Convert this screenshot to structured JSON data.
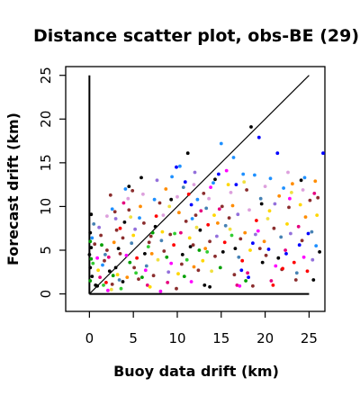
{
  "chart_data": {
    "type": "scatter",
    "title": "Distance scatter plot, obs-BE (29)",
    "xlabel": "Buoy data drift (km)",
    "ylabel": "Forecast drift (km)",
    "xlim": [
      -2.7,
      26.8
    ],
    "ylim": [
      -2.0,
      26.0
    ],
    "xticks": [
      0,
      5,
      10,
      15,
      20,
      25
    ],
    "yticks": [
      0,
      5,
      10,
      15,
      20,
      25
    ],
    "reference_lines": [
      "y = x diagonal from 0 to 25",
      "horizontal axis line y = 0 from x = 0 to 25",
      "vertical axis line x = 0 from y = 0 to 25"
    ],
    "grid": false,
    "legend": "none",
    "point_colors": [
      "#000000",
      "#8b2e2e",
      "#e6007e",
      "#ff00ff",
      "#ff0000",
      "#ff8c00",
      "#ffd700",
      "#f0e040",
      "#00a000",
      "#32cd32",
      "#1e90ff",
      "#4682b4",
      "#0000ff",
      "#9370db",
      "#dda0dd"
    ],
    "series": [
      {
        "color": "#000000",
        "points": [
          [
            0.2,
            9.1
          ],
          [
            0.1,
            7.0
          ],
          [
            0.2,
            5.3
          ],
          [
            0.0,
            4.5
          ],
          [
            0.1,
            3.0
          ],
          [
            0.3,
            2.0
          ],
          [
            0.9,
            0.9
          ],
          [
            2.3,
            2.6
          ],
          [
            3.3,
            5.2
          ],
          [
            3.8,
            1.4
          ],
          [
            4.0,
            8.2
          ],
          [
            4.5,
            12.3
          ],
          [
            5.9,
            13.3
          ],
          [
            6.3,
            4.6
          ],
          [
            7.5,
            7.7
          ],
          [
            9.3,
            10.8
          ],
          [
            11.5,
            5.4
          ],
          [
            11.2,
            16.1
          ],
          [
            12.6,
            7.3
          ],
          [
            13.1,
            1.0
          ],
          [
            13.7,
            0.8
          ],
          [
            14.3,
            13.1
          ],
          [
            15.2,
            4.8
          ],
          [
            16.6,
            5.2
          ],
          [
            18.4,
            19.1
          ],
          [
            19.6,
            10.3
          ],
          [
            19.7,
            3.6
          ],
          [
            21.5,
            4.1
          ],
          [
            24.1,
            13.0
          ],
          [
            25.5,
            1.6
          ],
          [
            26.2,
            4.8
          ],
          [
            0.7,
            1.0
          ],
          [
            3.0,
            3.0
          ],
          [
            10.6,
            4.5
          ]
        ]
      },
      {
        "color": "#8b2e2e",
        "points": [
          [
            0.6,
            5.7
          ],
          [
            1.3,
            6.7
          ],
          [
            1.7,
            3.8
          ],
          [
            2.0,
            5.0
          ],
          [
            2.4,
            11.3
          ],
          [
            2.6,
            1.1
          ],
          [
            3.1,
            7.3
          ],
          [
            3.5,
            4.6
          ],
          [
            3.8,
            6.4
          ],
          [
            4.5,
            9.6
          ],
          [
            5.1,
            3.0
          ],
          [
            5.6,
            1.7
          ],
          [
            6.2,
            8.1
          ],
          [
            6.8,
            5.9
          ],
          [
            7.3,
            2.1
          ],
          [
            8.0,
            10.4
          ],
          [
            8.5,
            4.9
          ],
          [
            9.2,
            6.8
          ],
          [
            9.9,
            0.6
          ],
          [
            10.5,
            3.4
          ],
          [
            11.0,
            8.3
          ],
          [
            11.8,
            5.6
          ],
          [
            12.4,
            2.7
          ],
          [
            13.0,
            11.5
          ],
          [
            13.7,
            6.0
          ],
          [
            14.3,
            4.3
          ],
          [
            15.1,
            10.0
          ],
          [
            15.9,
            8.7
          ],
          [
            16.5,
            2.2
          ],
          [
            17.2,
            6.3
          ],
          [
            17.9,
            11.9
          ],
          [
            18.6,
            0.9
          ],
          [
            19.4,
            5.2
          ],
          [
            20.1,
            4.4
          ],
          [
            21.0,
            7.5
          ],
          [
            21.9,
            2.8
          ],
          [
            22.7,
            9.9
          ],
          [
            23.5,
            1.6
          ],
          [
            24.2,
            6.1
          ],
          [
            25.1,
            10.7
          ],
          [
            26.0,
            11.0
          ],
          [
            2.9,
            9.4
          ],
          [
            4.9,
            11.8
          ],
          [
            7.0,
            6.6
          ],
          [
            12.1,
            9.0
          ]
        ]
      },
      {
        "color": "#e6007e",
        "points": [
          [
            1.2,
            1.9
          ],
          [
            2.2,
            4.2
          ],
          [
            3.9,
            10.4
          ],
          [
            6.6,
            1.0
          ],
          [
            8.9,
            1.3
          ],
          [
            10.4,
            7.0
          ],
          [
            12.7,
            9.5
          ],
          [
            14.8,
            9.7
          ],
          [
            16.8,
            1.0
          ],
          [
            18.0,
            2.4
          ],
          [
            20.7,
            1.5
          ],
          [
            22.3,
            5.0
          ],
          [
            23.8,
            7.7
          ],
          [
            25.6,
            11.5
          ]
        ]
      },
      {
        "color": "#ff00ff",
        "points": [
          [
            0.9,
            4.1
          ],
          [
            2.1,
            0.4
          ],
          [
            4.2,
            4.4
          ],
          [
            6.4,
            2.7
          ],
          [
            9.3,
            3.5
          ],
          [
            11.6,
            1.4
          ],
          [
            13.8,
            12.2
          ],
          [
            15.6,
            14.1
          ],
          [
            17.1,
            0.9
          ],
          [
            19.2,
            7.2
          ],
          [
            21.2,
            3.2
          ],
          [
            22.8,
            10.9
          ],
          [
            24.4,
            4.2
          ],
          [
            8.1,
            0.3
          ]
        ]
      },
      {
        "color": "#ff0000",
        "points": [
          [
            1.9,
            1.3
          ],
          [
            3.5,
            7.5
          ],
          [
            5.4,
            4.1
          ],
          [
            7.6,
            8.9
          ],
          [
            9.6,
            5.6
          ],
          [
            11.3,
            11.4
          ],
          [
            13.5,
            7.9
          ],
          [
            15.4,
            5.9
          ],
          [
            17.4,
            3.8
          ],
          [
            19.0,
            8.4
          ],
          [
            20.9,
            1.0
          ],
          [
            22.0,
            2.9
          ],
          [
            23.3,
            3.6
          ],
          [
            24.8,
            2.6
          ]
        ]
      },
      {
        "color": "#ff8c00",
        "points": [
          [
            2.8,
            5.9
          ],
          [
            4.3,
            1.9
          ],
          [
            5.8,
            10.0
          ],
          [
            7.1,
            4.6
          ],
          [
            8.7,
            12.0
          ],
          [
            10.2,
            9.3
          ],
          [
            11.9,
            3.1
          ],
          [
            13.2,
            5.2
          ],
          [
            14.6,
            8.1
          ],
          [
            16.3,
            10.1
          ],
          [
            17.7,
            7.0
          ],
          [
            19.9,
            6.0
          ],
          [
            21.6,
            11.2
          ],
          [
            23.1,
            12.6
          ],
          [
            24.6,
            8.8
          ],
          [
            25.7,
            12.9
          ]
        ]
      },
      {
        "color": "#ffd700",
        "points": [
          [
            1.0,
            2.7
          ],
          [
            3.2,
            2.2
          ],
          [
            5.0,
            6.7
          ],
          [
            6.9,
            0.8
          ],
          [
            8.3,
            7.1
          ],
          [
            10.1,
            2.3
          ],
          [
            11.4,
            6.4
          ],
          [
            12.9,
            3.8
          ],
          [
            14.2,
            9.0
          ],
          [
            15.8,
            12.5
          ],
          [
            18.3,
            5.0
          ],
          [
            20.5,
            9.5
          ],
          [
            22.5,
            8.0
          ],
          [
            24.0,
            10.2
          ],
          [
            25.9,
            9.0
          ]
        ]
      },
      {
        "color": "#f0e040",
        "points": [
          [
            2.5,
            0.5
          ],
          [
            4.7,
            8.8
          ],
          [
            7.8,
            3.9
          ],
          [
            9.1,
            10.0
          ],
          [
            12.2,
            7.6
          ],
          [
            13.9,
            2.6
          ],
          [
            16.0,
            7.4
          ],
          [
            17.6,
            12.8
          ],
          [
            20.3,
            8.6
          ],
          [
            23.0,
            11.6
          ]
        ]
      },
      {
        "color": "#00a000",
        "points": [
          [
            0.1,
            1.5
          ],
          [
            0.2,
            4.0
          ],
          [
            0.1,
            6.0
          ],
          [
            1.4,
            5.6
          ],
          [
            2.7,
            2.1
          ],
          [
            4.6,
            3.6
          ],
          [
            6.0,
            1.9
          ],
          [
            7.2,
            7.0
          ],
          [
            8.8,
            4.2
          ],
          [
            10.8,
            2.0
          ],
          [
            12.5,
            5.0
          ],
          [
            14.9,
            3.0
          ],
          [
            17.8,
            1.5
          ]
        ]
      },
      {
        "color": "#32cd32",
        "points": [
          [
            0.4,
            3.5
          ],
          [
            1.6,
            1.0
          ],
          [
            3.6,
            0.6
          ],
          [
            5.3,
            2.4
          ],
          [
            6.7,
            5.4
          ],
          [
            9.7,
            6.9
          ],
          [
            11.1,
            3.9
          ],
          [
            13.4,
            4.8
          ],
          [
            16.2,
            6.7
          ]
        ]
      },
      {
        "color": "#1e90ff",
        "points": [
          [
            0.3,
            6.4
          ],
          [
            1.5,
            3.3
          ],
          [
            2.6,
            9.7
          ],
          [
            4.1,
            12.0
          ],
          [
            5.7,
            8.7
          ],
          [
            7.4,
            10.8
          ],
          [
            9.4,
            13.4
          ],
          [
            10.3,
            14.6
          ],
          [
            12.3,
            10.8
          ],
          [
            14.1,
            12.7
          ],
          [
            15.0,
            17.2
          ],
          [
            16.4,
            15.6
          ],
          [
            17.5,
            13.7
          ],
          [
            18.8,
            13.6
          ],
          [
            20.6,
            13.2
          ],
          [
            22.1,
            12.1
          ],
          [
            24.5,
            13.3
          ],
          [
            25.8,
            5.5
          ],
          [
            11.7,
            8.6
          ]
        ]
      },
      {
        "color": "#4682b4",
        "points": [
          [
            0.5,
            8.0
          ],
          [
            1.8,
            4.5
          ],
          [
            3.4,
            1.6
          ],
          [
            4.8,
            5.8
          ],
          [
            6.5,
            3.2
          ],
          [
            8.2,
            6.1
          ],
          [
            10.7,
            12.2
          ],
          [
            13.3,
            9.8
          ],
          [
            15.5,
            7.8
          ],
          [
            17.0,
            4.2
          ],
          [
            19.5,
            10.9
          ],
          [
            21.8,
            6.5
          ],
          [
            23.6,
            2.4
          ],
          [
            25.3,
            7.1
          ]
        ]
      },
      {
        "color": "#0000ff",
        "points": [
          [
            9.9,
            14.5
          ],
          [
            10.9,
            12.8
          ],
          [
            11.6,
            10.2
          ],
          [
            14.7,
            13.7
          ],
          [
            16.7,
            12.5
          ],
          [
            17.3,
            2.7
          ],
          [
            18.1,
            1.9
          ],
          [
            18.6,
            5.8
          ],
          [
            19.3,
            17.9
          ],
          [
            21.4,
            16.1
          ],
          [
            22.4,
            4.6
          ],
          [
            23.9,
            5.6
          ],
          [
            24.9,
            6.9
          ],
          [
            26.6,
            16.1
          ],
          [
            20.4,
            5.1
          ]
        ]
      },
      {
        "color": "#9370db",
        "points": [
          [
            1.1,
            7.6
          ],
          [
            3.0,
            8.6
          ],
          [
            5.2,
            7.4
          ],
          [
            7.7,
            13.0
          ],
          [
            9.0,
            2.5
          ],
          [
            12.0,
            13.9
          ],
          [
            14.5,
            6.6
          ],
          [
            16.9,
            9.1
          ],
          [
            18.9,
            6.8
          ],
          [
            21.1,
            10.3
          ],
          [
            22.9,
            6.9
          ],
          [
            25.4,
            3.9
          ]
        ]
      },
      {
        "color": "#dda0dd",
        "points": [
          [
            2.0,
            8.9
          ],
          [
            4.4,
            10.9
          ],
          [
            6.1,
            11.4
          ],
          [
            8.4,
            9.0
          ],
          [
            10.0,
            11.1
          ],
          [
            11.9,
            12.5
          ],
          [
            13.6,
            10.9
          ],
          [
            16.1,
            11.6
          ],
          [
            18.2,
            9.6
          ],
          [
            20.0,
            12.3
          ],
          [
            22.6,
            13.9
          ],
          [
            24.3,
            11.9
          ]
        ]
      }
    ]
  }
}
